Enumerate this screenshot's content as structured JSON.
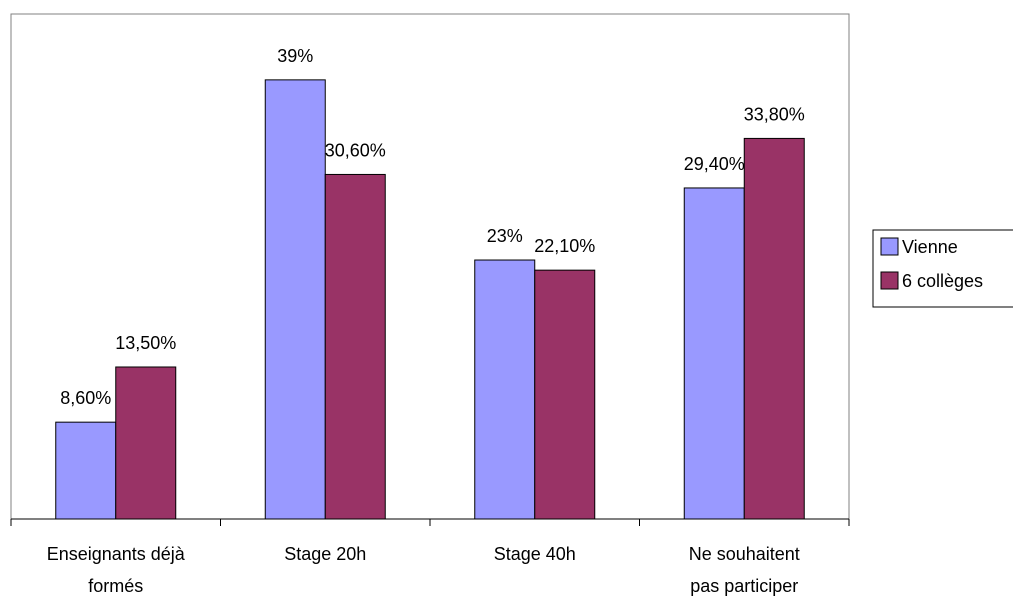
{
  "chart_data": {
    "type": "bar",
    "categories": [
      [
        "Enseignants déjà",
        "formés"
      ],
      [
        "Stage 20h"
      ],
      [
        "Stage 40h"
      ],
      [
        "Ne souhaitent",
        "pas participer"
      ]
    ],
    "series": [
      {
        "name": "Vienne",
        "color": "#9999ff",
        "values": [
          8.6,
          39,
          23,
          29.4
        ],
        "labels": [
          "8,60%",
          "39%",
          "23%",
          "29,40%"
        ]
      },
      {
        "name": "6 collèges",
        "color": "#993366",
        "values": [
          13.5,
          30.6,
          22.1,
          33.8
        ],
        "labels": [
          "13,50%",
          "30,60%",
          "22,10%",
          "33,80%"
        ]
      }
    ],
    "title": "",
    "xlabel": "",
    "ylabel": "",
    "ylim": [
      0,
      40
    ],
    "grid": false,
    "legend": "right"
  }
}
